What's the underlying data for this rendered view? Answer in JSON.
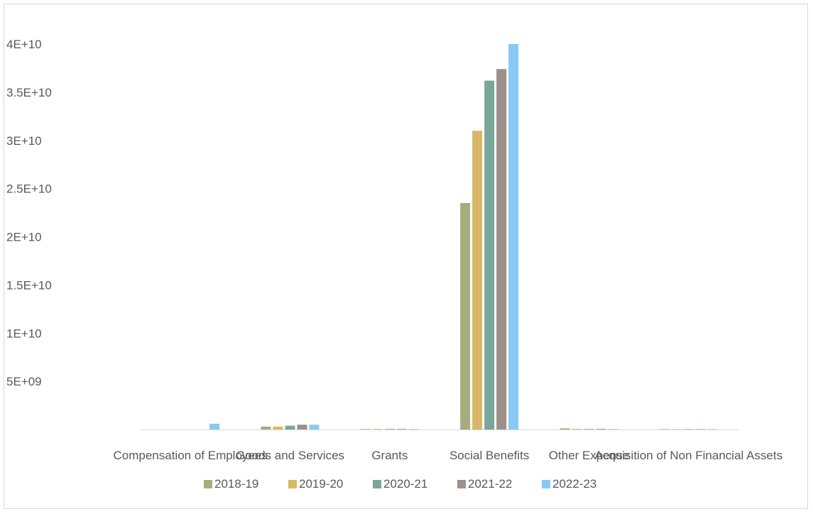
{
  "chart_data": {
    "type": "bar",
    "title": "",
    "xlabel": "",
    "ylabel": "",
    "categories": [
      "Compensation of Employees",
      "Goods and Services",
      "Grants",
      "Social Benefits",
      "Other Expense",
      "Acquisition of Non Financial Assets"
    ],
    "ylim": [
      0,
      40000000000
    ],
    "y_ticks": [
      5000000000,
      10000000000,
      15000000000,
      20000000000,
      25000000000,
      30000000000,
      35000000000,
      40000000000
    ],
    "y_tick_labels": [
      "5E+09",
      "1E+10",
      "1.5E+10",
      "2E+10",
      "2.5E+10",
      "3E+10",
      "3.5E+10",
      "4E+10"
    ],
    "grid": false,
    "legend_position": "bottom",
    "series": [
      {
        "name": "2018-19",
        "color": "#a5ad7c",
        "values": [
          0,
          300000000,
          50000000,
          23500000000,
          120000000,
          40000000
        ]
      },
      {
        "name": "2019-20",
        "color": "#d9b766",
        "values": [
          0,
          300000000,
          60000000,
          31000000000,
          60000000,
          40000000
        ]
      },
      {
        "name": "2020-21",
        "color": "#79a79a",
        "values": [
          0,
          400000000,
          60000000,
          36200000000,
          50000000,
          40000000
        ]
      },
      {
        "name": "2021-22",
        "color": "#9d8f8a",
        "values": [
          0,
          500000000,
          60000000,
          37400000000,
          60000000,
          40000000
        ]
      },
      {
        "name": "2022-23",
        "color": "#88c8f2",
        "values": [
          600000000,
          500000000,
          50000000,
          40000000000,
          50000000,
          40000000
        ]
      }
    ]
  }
}
